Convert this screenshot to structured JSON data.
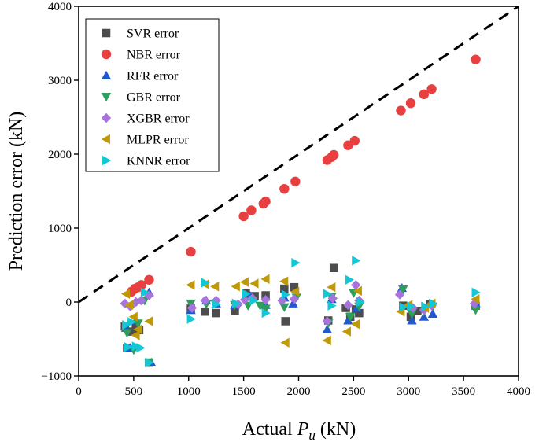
{
  "chart_data": {
    "type": "scatter",
    "title": "",
    "xlabel": "Actual ",
    "xlabel_var": "P",
    "xlabel_sub": "u",
    "xlabel_unit": " (kN)",
    "ylabel": "Prediction error (kN)",
    "xlim": [
      0,
      4000
    ],
    "ylim": [
      -1000,
      4000
    ],
    "x_ticks": [
      0,
      500,
      1000,
      1500,
      2000,
      2500,
      3000,
      3500,
      4000
    ],
    "y_ticks": [
      -1000,
      0,
      1000,
      2000,
      3000,
      4000
    ],
    "grid": false,
    "legend_position": "top-left",
    "reference_line": {
      "type": "y=x",
      "style": "dashed",
      "color": "#000000"
    },
    "series": [
      {
        "name": "SVR error",
        "marker": "square",
        "color": "#4d4d4d",
        "points": [
          [
            420,
            -330
          ],
          [
            440,
            -620
          ],
          [
            480,
            -400
          ],
          [
            520,
            -330
          ],
          [
            550,
            -380
          ],
          [
            640,
            -820
          ],
          [
            1020,
            -90
          ],
          [
            1150,
            -130
          ],
          [
            1250,
            -150
          ],
          [
            1420,
            -120
          ],
          [
            1520,
            120
          ],
          [
            1600,
            80
          ],
          [
            1700,
            90
          ],
          [
            1870,
            180
          ],
          [
            1880,
            -260
          ],
          [
            1960,
            200
          ],
          [
            2270,
            -250
          ],
          [
            2320,
            460
          ],
          [
            2430,
            -80
          ],
          [
            2470,
            -200
          ],
          [
            2520,
            -100
          ],
          [
            2550,
            -150
          ],
          [
            2950,
            -50
          ],
          [
            3020,
            -200
          ],
          [
            3080,
            -120
          ],
          [
            3200,
            -30
          ],
          [
            3610,
            -50
          ]
        ]
      },
      {
        "name": "NBR error",
        "marker": "circle",
        "color": "#e84040",
        "points": [
          [
            480,
            140
          ],
          [
            510,
            180
          ],
          [
            540,
            200
          ],
          [
            570,
            230
          ],
          [
            640,
            300
          ],
          [
            1020,
            680
          ],
          [
            1500,
            1160
          ],
          [
            1570,
            1240
          ],
          [
            1680,
            1330
          ],
          [
            1700,
            1360
          ],
          [
            1870,
            1530
          ],
          [
            1970,
            1630
          ],
          [
            2260,
            1920
          ],
          [
            2300,
            1960
          ],
          [
            2320,
            1990
          ],
          [
            2450,
            2120
          ],
          [
            2510,
            2180
          ],
          [
            2930,
            2590
          ],
          [
            3020,
            2690
          ],
          [
            3140,
            2810
          ],
          [
            3210,
            2880
          ],
          [
            3610,
            3280
          ]
        ]
      },
      {
        "name": "RFR error",
        "marker": "triangle-up",
        "color": "#2058d0",
        "points": [
          [
            430,
            -350
          ],
          [
            470,
            -620
          ],
          [
            520,
            -250
          ],
          [
            640,
            130
          ],
          [
            660,
            -820
          ],
          [
            1020,
            -110
          ],
          [
            1160,
            20
          ],
          [
            1250,
            -20
          ],
          [
            1420,
            -40
          ],
          [
            1560,
            80
          ],
          [
            1700,
            -40
          ],
          [
            1870,
            60
          ],
          [
            1950,
            -20
          ],
          [
            2260,
            -370
          ],
          [
            2300,
            40
          ],
          [
            2450,
            -250
          ],
          [
            2530,
            -80
          ],
          [
            2940,
            190
          ],
          [
            3030,
            -250
          ],
          [
            3140,
            -200
          ],
          [
            3220,
            -160
          ],
          [
            3610,
            -20
          ]
        ]
      },
      {
        "name": "GBR error",
        "marker": "triangle-down",
        "color": "#2e9e5b",
        "points": [
          [
            440,
            -420
          ],
          [
            500,
            -650
          ],
          [
            540,
            -290
          ],
          [
            600,
            20
          ],
          [
            640,
            -820
          ],
          [
            1020,
            -20
          ],
          [
            1160,
            -30
          ],
          [
            1240,
            -20
          ],
          [
            1420,
            -40
          ],
          [
            1540,
            -50
          ],
          [
            1650,
            -50
          ],
          [
            1700,
            -90
          ],
          [
            1870,
            -70
          ],
          [
            1980,
            60
          ],
          [
            2270,
            -290
          ],
          [
            2300,
            70
          ],
          [
            2470,
            -200
          ],
          [
            2500,
            120
          ],
          [
            2550,
            -60
          ],
          [
            2950,
            170
          ],
          [
            3030,
            -160
          ],
          [
            3140,
            -130
          ],
          [
            3220,
            -60
          ],
          [
            3610,
            -110
          ]
        ]
      },
      {
        "name": "XGBR error",
        "marker": "diamond",
        "color": "#a774dc",
        "points": [
          [
            420,
            -20
          ],
          [
            470,
            -60
          ],
          [
            520,
            0
          ],
          [
            570,
            20
          ],
          [
            640,
            90
          ],
          [
            1030,
            -80
          ],
          [
            1150,
            20
          ],
          [
            1250,
            20
          ],
          [
            1450,
            -30
          ],
          [
            1510,
            30
          ],
          [
            1580,
            50
          ],
          [
            1700,
            30
          ],
          [
            1850,
            20
          ],
          [
            1960,
            40
          ],
          [
            2260,
            -260
          ],
          [
            2310,
            50
          ],
          [
            2450,
            -40
          ],
          [
            2520,
            230
          ],
          [
            2550,
            20
          ],
          [
            2920,
            100
          ],
          [
            3040,
            -80
          ],
          [
            3140,
            -110
          ],
          [
            3210,
            -50
          ],
          [
            3600,
            -20
          ]
        ]
      },
      {
        "name": "MLPR error",
        "marker": "triangle-left",
        "color": "#c09a06",
        "points": [
          [
            430,
            110
          ],
          [
            460,
            -40
          ],
          [
            500,
            -200
          ],
          [
            520,
            -450
          ],
          [
            540,
            -370
          ],
          [
            640,
            -260
          ],
          [
            1020,
            230
          ],
          [
            1150,
            240
          ],
          [
            1240,
            210
          ],
          [
            1430,
            210
          ],
          [
            1510,
            270
          ],
          [
            1600,
            250
          ],
          [
            1700,
            310
          ],
          [
            1870,
            280
          ],
          [
            1880,
            -550
          ],
          [
            1970,
            140
          ],
          [
            2260,
            -520
          ],
          [
            2300,
            200
          ],
          [
            2440,
            -400
          ],
          [
            2520,
            -300
          ],
          [
            2540,
            150
          ],
          [
            2930,
            -130
          ],
          [
            3000,
            -40
          ],
          [
            3150,
            -80
          ],
          [
            3210,
            -20
          ],
          [
            3610,
            40
          ]
        ]
      },
      {
        "name": "KNNR error",
        "marker": "triangle-right",
        "color": "#12c8d6",
        "points": [
          [
            430,
            -310
          ],
          [
            450,
            -610
          ],
          [
            480,
            -270
          ],
          [
            520,
            -600
          ],
          [
            560,
            -620
          ],
          [
            600,
            130
          ],
          [
            640,
            -820
          ],
          [
            1020,
            -230
          ],
          [
            1150,
            260
          ],
          [
            1250,
            -30
          ],
          [
            1430,
            -20
          ],
          [
            1520,
            110
          ],
          [
            1590,
            20
          ],
          [
            1700,
            -150
          ],
          [
            1880,
            100
          ],
          [
            1970,
            530
          ],
          [
            2260,
            110
          ],
          [
            2300,
            -50
          ],
          [
            2460,
            300
          ],
          [
            2520,
            560
          ],
          [
            2560,
            0
          ],
          [
            2950,
            -70
          ],
          [
            3020,
            -60
          ],
          [
            3150,
            -60
          ],
          [
            3220,
            -20
          ],
          [
            3610,
            130
          ]
        ]
      }
    ]
  }
}
